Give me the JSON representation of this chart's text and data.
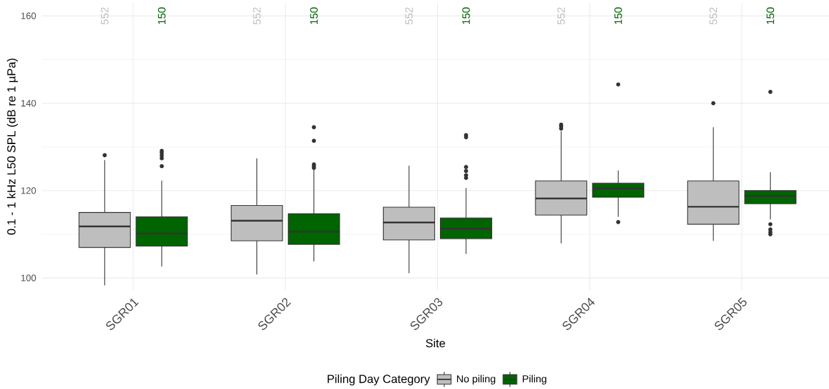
{
  "chart_data": {
    "type": "box",
    "xlabel": "Site",
    "ylabel": "0.1 - 1 kHz L50 SPL (dB re 1 µPa)",
    "legend_title": "Piling Day Category",
    "categories": [
      "SGR01",
      "SGR02",
      "SGR03",
      "SGR04",
      "SGR05"
    ],
    "ylim": [
      97.2,
      163.0
    ],
    "yticks": [
      100,
      120,
      140,
      160
    ],
    "grid": true,
    "legend": "bottom",
    "series": [
      {
        "name": "No piling",
        "color": "#bebebe",
        "value_labels": [
          "552",
          "552",
          "552",
          "552",
          "552"
        ],
        "boxes": [
          {
            "low": 98.3,
            "q1": 107.0,
            "median": 111.8,
            "q3": 115.0,
            "high": 127.0,
            "outliers": [
              128.1
            ]
          },
          {
            "low": 100.8,
            "q1": 108.5,
            "median": 113.1,
            "q3": 116.6,
            "high": 127.4
          },
          {
            "low": 101.1,
            "q1": 108.7,
            "median": 112.7,
            "q3": 116.2,
            "high": 125.7
          },
          {
            "low": 107.9,
            "q1": 114.4,
            "median": 118.2,
            "q3": 122.2,
            "high": 133.6,
            "outliers": [
              134.2,
              134.7,
              135.1
            ]
          },
          {
            "low": 108.5,
            "q1": 112.3,
            "median": 116.3,
            "q3": 122.2,
            "high": 134.5,
            "outliers": [
              140.0
            ]
          }
        ]
      },
      {
        "name": "Piling",
        "color": "#006400",
        "value_labels": [
          "150",
          "150",
          "150",
          "150",
          "150"
        ],
        "boxes": [
          {
            "low": 102.6,
            "q1": 107.3,
            "median": 110.2,
            "q3": 114.0,
            "high": 122.3,
            "outliers": [
              125.6,
              127.4,
              128.0,
              128.6,
              129.1
            ]
          },
          {
            "low": 103.8,
            "q1": 107.7,
            "median": 110.6,
            "q3": 114.7,
            "high": 124.9,
            "outliers": [
              125.2,
              125.6,
              126.0,
              131.4,
              134.5
            ]
          },
          {
            "low": 105.5,
            "q1": 109.0,
            "median": 111.3,
            "q3": 113.7,
            "high": 120.6,
            "outliers": [
              122.9,
              123.5,
              124.5,
              125.4,
              132.2,
              132.7
            ]
          },
          {
            "low": 114.0,
            "q1": 118.5,
            "median": 120.5,
            "q3": 121.7,
            "high": 124.6,
            "outliers": [
              112.8,
              144.3
            ]
          },
          {
            "low": 113.4,
            "q1": 117.0,
            "median": 118.8,
            "q3": 120.0,
            "high": 124.2,
            "outliers": [
              110.0,
              110.5,
              111.1,
              112.3,
              142.6
            ]
          }
        ]
      }
    ]
  }
}
